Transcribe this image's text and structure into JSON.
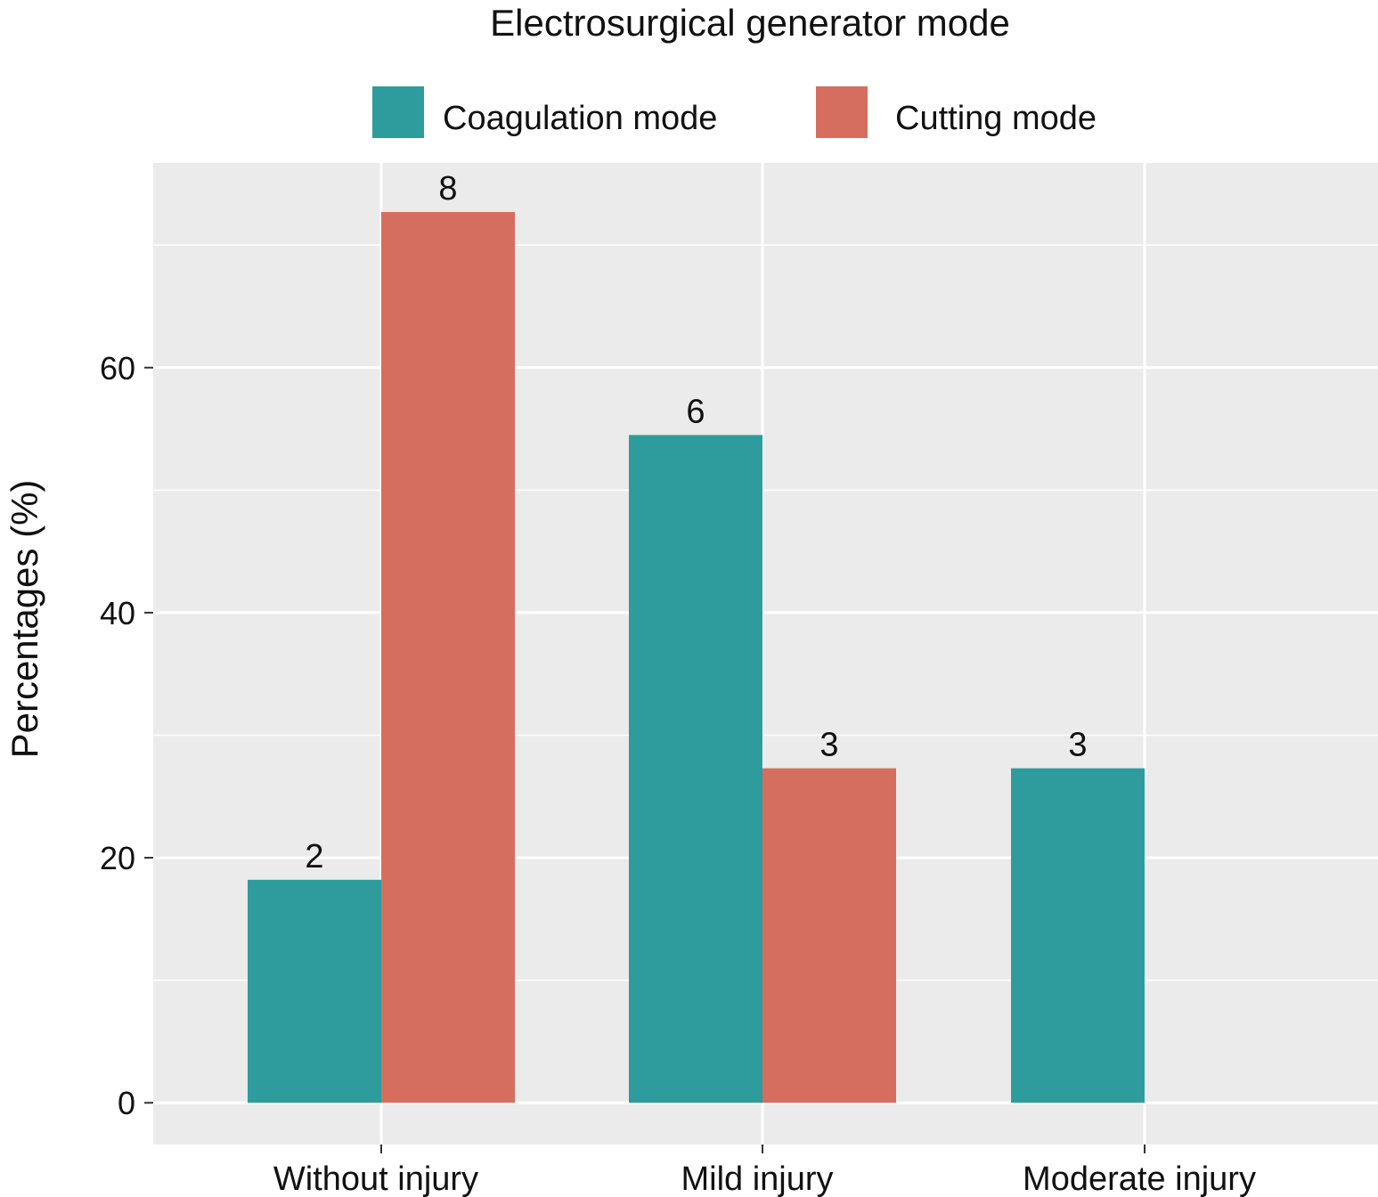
{
  "chart_data": {
    "type": "bar",
    "legend_title": "Electrosurgical generator mode",
    "legend_position": "top",
    "categories": [
      "Without injury",
      "Mild injury",
      "Moderate injury"
    ],
    "series": [
      {
        "name": "Coagulation mode",
        "color": "#2E9C9C",
        "values": [
          18.2,
          54.5,
          27.3
        ],
        "labels": [
          "2",
          "6",
          "3"
        ]
      },
      {
        "name": "Cutting mode",
        "color": "#D56E5E",
        "values": [
          72.7,
          27.3,
          0
        ],
        "labels": [
          "8",
          "3",
          ""
        ]
      }
    ],
    "xlabel": "",
    "ylabel": "Percentages (%)",
    "ylim": [
      -3.4,
      76.7
    ],
    "yticks": [
      "0",
      "20",
      "40",
      "60"
    ],
    "grid": true,
    "panel_background": "#EBEBEB"
  }
}
